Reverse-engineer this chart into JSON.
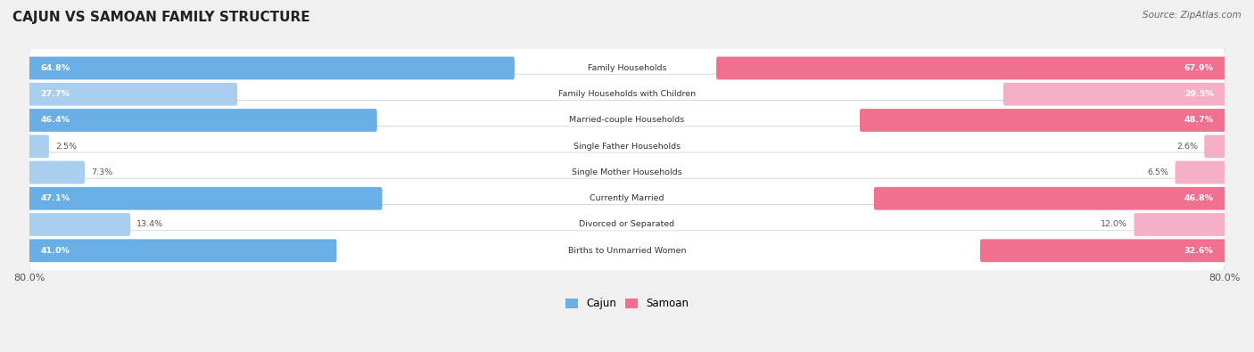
{
  "title": "CAJUN VS SAMOAN FAMILY STRUCTURE",
  "source": "Source: ZipAtlas.com",
  "categories": [
    "Family Households",
    "Family Households with Children",
    "Married-couple Households",
    "Single Father Households",
    "Single Mother Households",
    "Currently Married",
    "Divorced or Separated",
    "Births to Unmarried Women"
  ],
  "cajun_values": [
    64.8,
    27.7,
    46.4,
    2.5,
    7.3,
    47.1,
    13.4,
    41.0
  ],
  "samoan_values": [
    67.9,
    29.5,
    48.7,
    2.6,
    6.5,
    46.8,
    12.0,
    32.6
  ],
  "cajun_color_strong": "#6aaee6",
  "cajun_color_light": "#aacfee",
  "samoan_color_strong": "#f07090",
  "samoan_color_light": "#f5b0c8",
  "axis_max": 80.0,
  "axis_label_left": "80.0%",
  "axis_label_right": "80.0%",
  "bg_color": "#f0f0f0",
  "row_bg_color": "#ffffff",
  "row_border_color": "#d0d0d0",
  "label_color_dark": "#555555",
  "label_color_white": "#ffffff"
}
